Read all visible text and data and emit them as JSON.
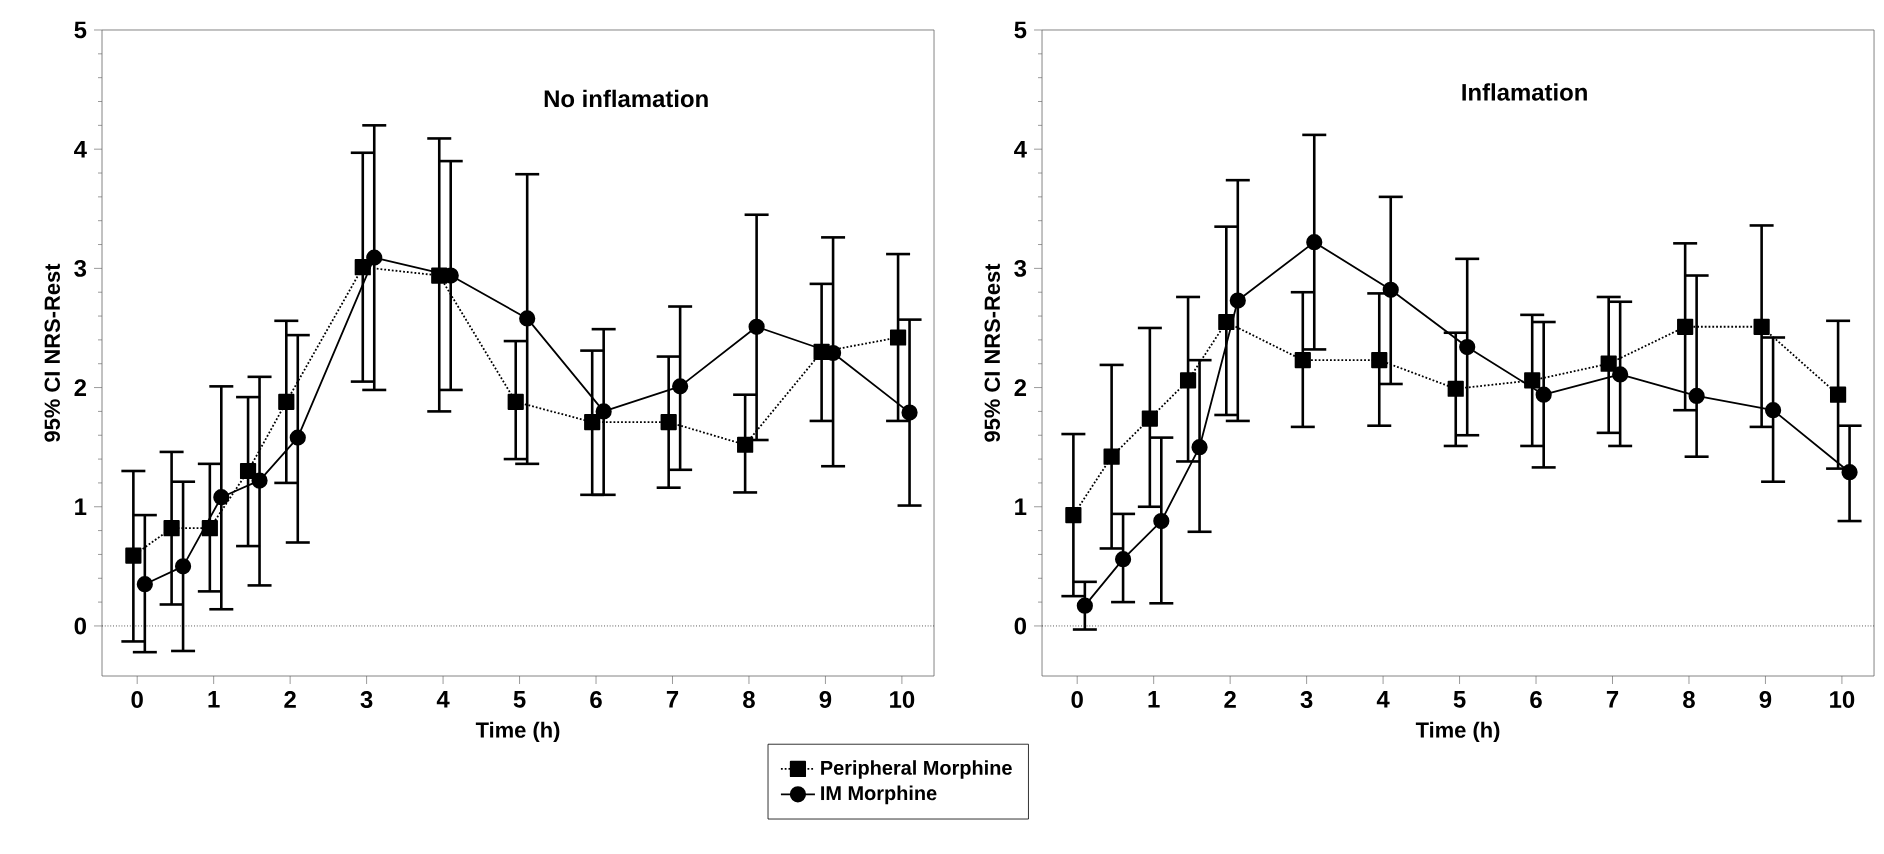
{
  "chart_data": [
    {
      "type": "line",
      "title": "No inflamation",
      "xlabel": "Time (h)",
      "ylabel": "95% CI NRS-Rest",
      "xlim": [
        -0.46,
        10.42
      ],
      "ylim": [
        -0.42,
        5
      ],
      "xticks": [
        0,
        1,
        2,
        3,
        4,
        5,
        6,
        7,
        8,
        9,
        10
      ],
      "yticks": [
        0,
        1,
        2,
        3,
        4,
        5
      ],
      "legend": "bottom right",
      "ref_lines": [
        {
          "axis": "y",
          "value": 0,
          "line_style": "dotted"
        }
      ],
      "series": [
        {
          "name": "Peripheral Morphine",
          "color": "#000000",
          "marker": "square",
          "line_style": "dotted",
          "x": [
            -0.05,
            0.45,
            0.95,
            1.45,
            1.95,
            2.95,
            3.95,
            4.95,
            5.95,
            6.95,
            7.95,
            8.95,
            9.95
          ],
          "values": [
            0.59,
            0.82,
            0.82,
            1.3,
            1.88,
            3.01,
            2.94,
            1.88,
            1.71,
            1.71,
            1.52,
            2.3,
            2.42
          ],
          "errors": [
            [
              -0.13,
              1.3
            ],
            [
              0.18,
              1.46
            ],
            [
              0.29,
              1.36
            ],
            [
              0.67,
              1.92
            ],
            [
              1.2,
              2.56
            ],
            [
              2.05,
              3.97
            ],
            [
              1.8,
              4.09
            ],
            [
              1.4,
              2.39
            ],
            [
              1.1,
              2.31
            ],
            [
              1.16,
              2.26
            ],
            [
              1.12,
              1.94
            ],
            [
              1.72,
              2.87
            ],
            [
              1.72,
              3.12
            ]
          ]
        },
        {
          "name": "IM Morphine",
          "color": "#000000",
          "marker": "circle",
          "line_style": "solid",
          "x": [
            0.1,
            0.6,
            1.1,
            1.6,
            2.1,
            3.1,
            4.1,
            5.1,
            6.1,
            7.1,
            8.1,
            9.1,
            10.1
          ],
          "values": [
            0.35,
            0.5,
            1.08,
            1.22,
            1.58,
            3.09,
            2.94,
            2.58,
            1.8,
            2.01,
            2.51,
            2.29,
            1.79
          ],
          "errors": [
            [
              -0.22,
              0.93
            ],
            [
              -0.21,
              1.21
            ],
            [
              0.14,
              2.01
            ],
            [
              0.34,
              2.09
            ],
            [
              0.7,
              2.44
            ],
            [
              1.98,
              4.2
            ],
            [
              1.98,
              3.9
            ],
            [
              1.36,
              3.79
            ],
            [
              1.1,
              2.49
            ],
            [
              1.31,
              2.68
            ],
            [
              1.56,
              3.45
            ],
            [
              1.34,
              3.26
            ],
            [
              1.01,
              2.57
            ]
          ]
        }
      ]
    },
    {
      "type": "line",
      "title": "Inflamation",
      "xlabel": "Time (h)",
      "ylabel": "95% CI NRS-Rest",
      "xlim": [
        -0.46,
        10.42
      ],
      "ylim": [
        -0.42,
        5
      ],
      "xticks": [
        0,
        1,
        2,
        3,
        4,
        5,
        6,
        7,
        8,
        9,
        10
      ],
      "yticks": [
        0,
        1,
        2,
        3,
        4,
        5
      ],
      "ref_lines": [
        {
          "axis": "y",
          "value": 0,
          "line_style": "dotted"
        }
      ],
      "series": [
        {
          "color": "#000000",
          "marker": "square",
          "line_style": "dotted",
          "x": [
            -0.05,
            0.45,
            0.95,
            1.45,
            1.95,
            2.95,
            3.95,
            4.95,
            5.95,
            6.95,
            7.95,
            8.95,
            9.95
          ],
          "values": [
            0.93,
            1.42,
            1.74,
            2.06,
            2.55,
            2.23,
            2.23,
            1.99,
            2.06,
            2.2,
            2.51,
            2.51,
            1.94
          ],
          "errors": [
            [
              0.25,
              1.61
            ],
            [
              0.65,
              2.19
            ],
            [
              1.0,
              2.5
            ],
            [
              1.38,
              2.76
            ],
            [
              1.77,
              3.35
            ],
            [
              1.67,
              2.8
            ],
            [
              1.68,
              2.79
            ],
            [
              1.51,
              2.46
            ],
            [
              1.51,
              2.61
            ],
            [
              1.62,
              2.76
            ],
            [
              1.81,
              3.21
            ],
            [
              1.67,
              3.36
            ],
            [
              1.32,
              2.56
            ]
          ]
        },
        {
          "color": "#000000",
          "marker": "circle",
          "line_style": "solid",
          "x": [
            0.1,
            0.6,
            1.1,
            1.6,
            2.1,
            3.1,
            4.1,
            5.1,
            6.1,
            7.1,
            8.1,
            9.1,
            10.1
          ],
          "values": [
            0.17,
            0.56,
            0.88,
            1.5,
            2.73,
            3.22,
            2.82,
            2.34,
            1.94,
            2.11,
            1.93,
            1.81,
            1.29
          ],
          "errors": [
            [
              -0.03,
              0.37
            ],
            [
              0.2,
              0.94
            ],
            [
              0.19,
              1.58
            ],
            [
              0.79,
              2.23
            ],
            [
              1.72,
              3.74
            ],
            [
              2.32,
              4.12
            ],
            [
              2.03,
              3.6
            ],
            [
              1.6,
              3.08
            ],
            [
              1.33,
              2.55
            ],
            [
              1.51,
              2.72
            ],
            [
              1.42,
              2.94
            ],
            [
              1.21,
              2.42
            ],
            [
              0.88,
              1.68
            ]
          ]
        }
      ]
    }
  ]
}
